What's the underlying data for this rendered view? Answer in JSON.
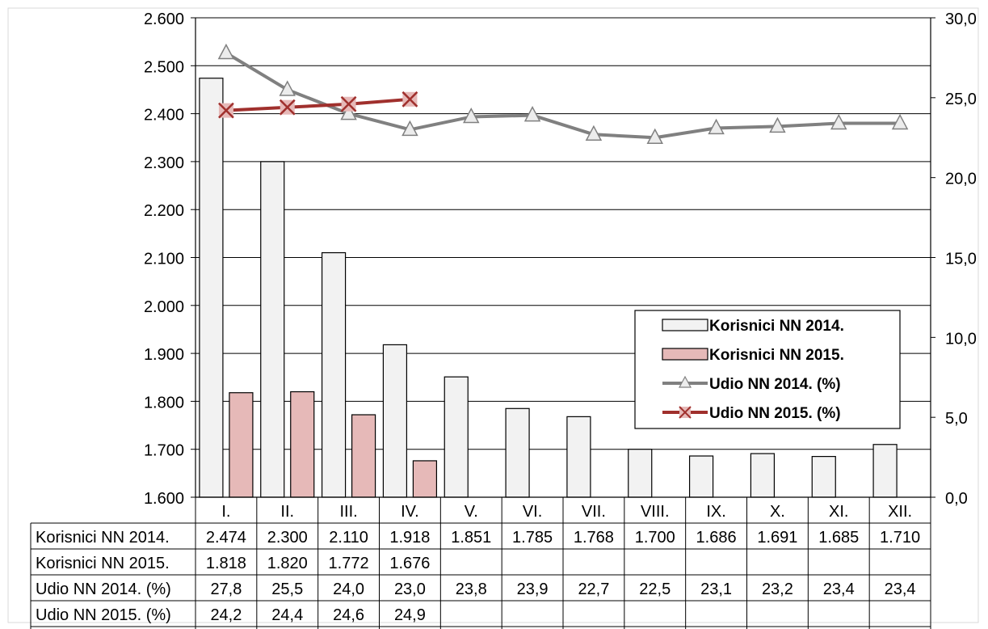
{
  "chart_data": {
    "type": "bar",
    "categories": [
      "I.",
      "II.",
      "III.",
      "IV.",
      "V.",
      "VI.",
      "VII.",
      "VIII.",
      "IX.",
      "X.",
      "XI.",
      "XII."
    ],
    "y_left": {
      "range": [
        1600,
        2600
      ],
      "step": 100,
      "tick_labels": [
        "1.600",
        "1.700",
        "1.800",
        "1.900",
        "2.000",
        "2.100",
        "2.200",
        "2.300",
        "2.400",
        "2.500",
        "2.600"
      ]
    },
    "y_right": {
      "range": [
        0,
        30
      ],
      "step": 5,
      "tick_labels": [
        "0,0",
        "5,0",
        "10,0",
        "15,0",
        "20,0",
        "25,0",
        "30,0"
      ]
    },
    "grid": true,
    "legend_position": "right-middle",
    "series": [
      {
        "name": "Korisnici NN 2014.",
        "kind": "bar",
        "axis": "left",
        "color": "#f2f2f2",
        "stroke": "#000000",
        "values": [
          2474,
          2300,
          2110,
          1918,
          1851,
          1785,
          1768,
          1700,
          1686,
          1691,
          1685,
          1710
        ],
        "labels": [
          "2.474",
          "2.300",
          "2.110",
          "1.918",
          "1.851",
          "1.785",
          "1.768",
          "1.700",
          "1.686",
          "1.691",
          "1.685",
          "1.710"
        ]
      },
      {
        "name": "Korisnici NN 2015.",
        "kind": "bar",
        "axis": "left",
        "color": "#e6b9b8",
        "stroke": "#000000",
        "values": [
          1818,
          1820,
          1772,
          1676,
          null,
          null,
          null,
          null,
          null,
          null,
          null,
          null
        ],
        "labels": [
          "1.818",
          "1.820",
          "1.772",
          "1.676",
          "",
          "",
          "",
          "",
          "",
          "",
          "",
          ""
        ]
      },
      {
        "name": "Udio NN 2014. (%)",
        "kind": "line",
        "axis": "right",
        "color": "#808080",
        "marker": "triangle",
        "values": [
          27.8,
          25.5,
          24.0,
          23.0,
          23.8,
          23.9,
          22.7,
          22.5,
          23.1,
          23.2,
          23.4,
          23.4
        ],
        "labels": [
          "27,8",
          "25,5",
          "24,0",
          "23,0",
          "23,8",
          "23,9",
          "22,7",
          "22,5",
          "23,1",
          "23,2",
          "23,4",
          "23,4"
        ]
      },
      {
        "name": "Udio NN 2015. (%)",
        "kind": "line",
        "axis": "right",
        "color": "#a0302d",
        "marker": "x",
        "values": [
          24.2,
          24.4,
          24.6,
          24.9,
          null,
          null,
          null,
          null,
          null,
          null,
          null,
          null
        ],
        "labels": [
          "24,2",
          "24,4",
          "24,6",
          "24,9",
          "",
          "",
          "",
          "",
          "",
          "",
          "",
          ""
        ]
      }
    ]
  }
}
